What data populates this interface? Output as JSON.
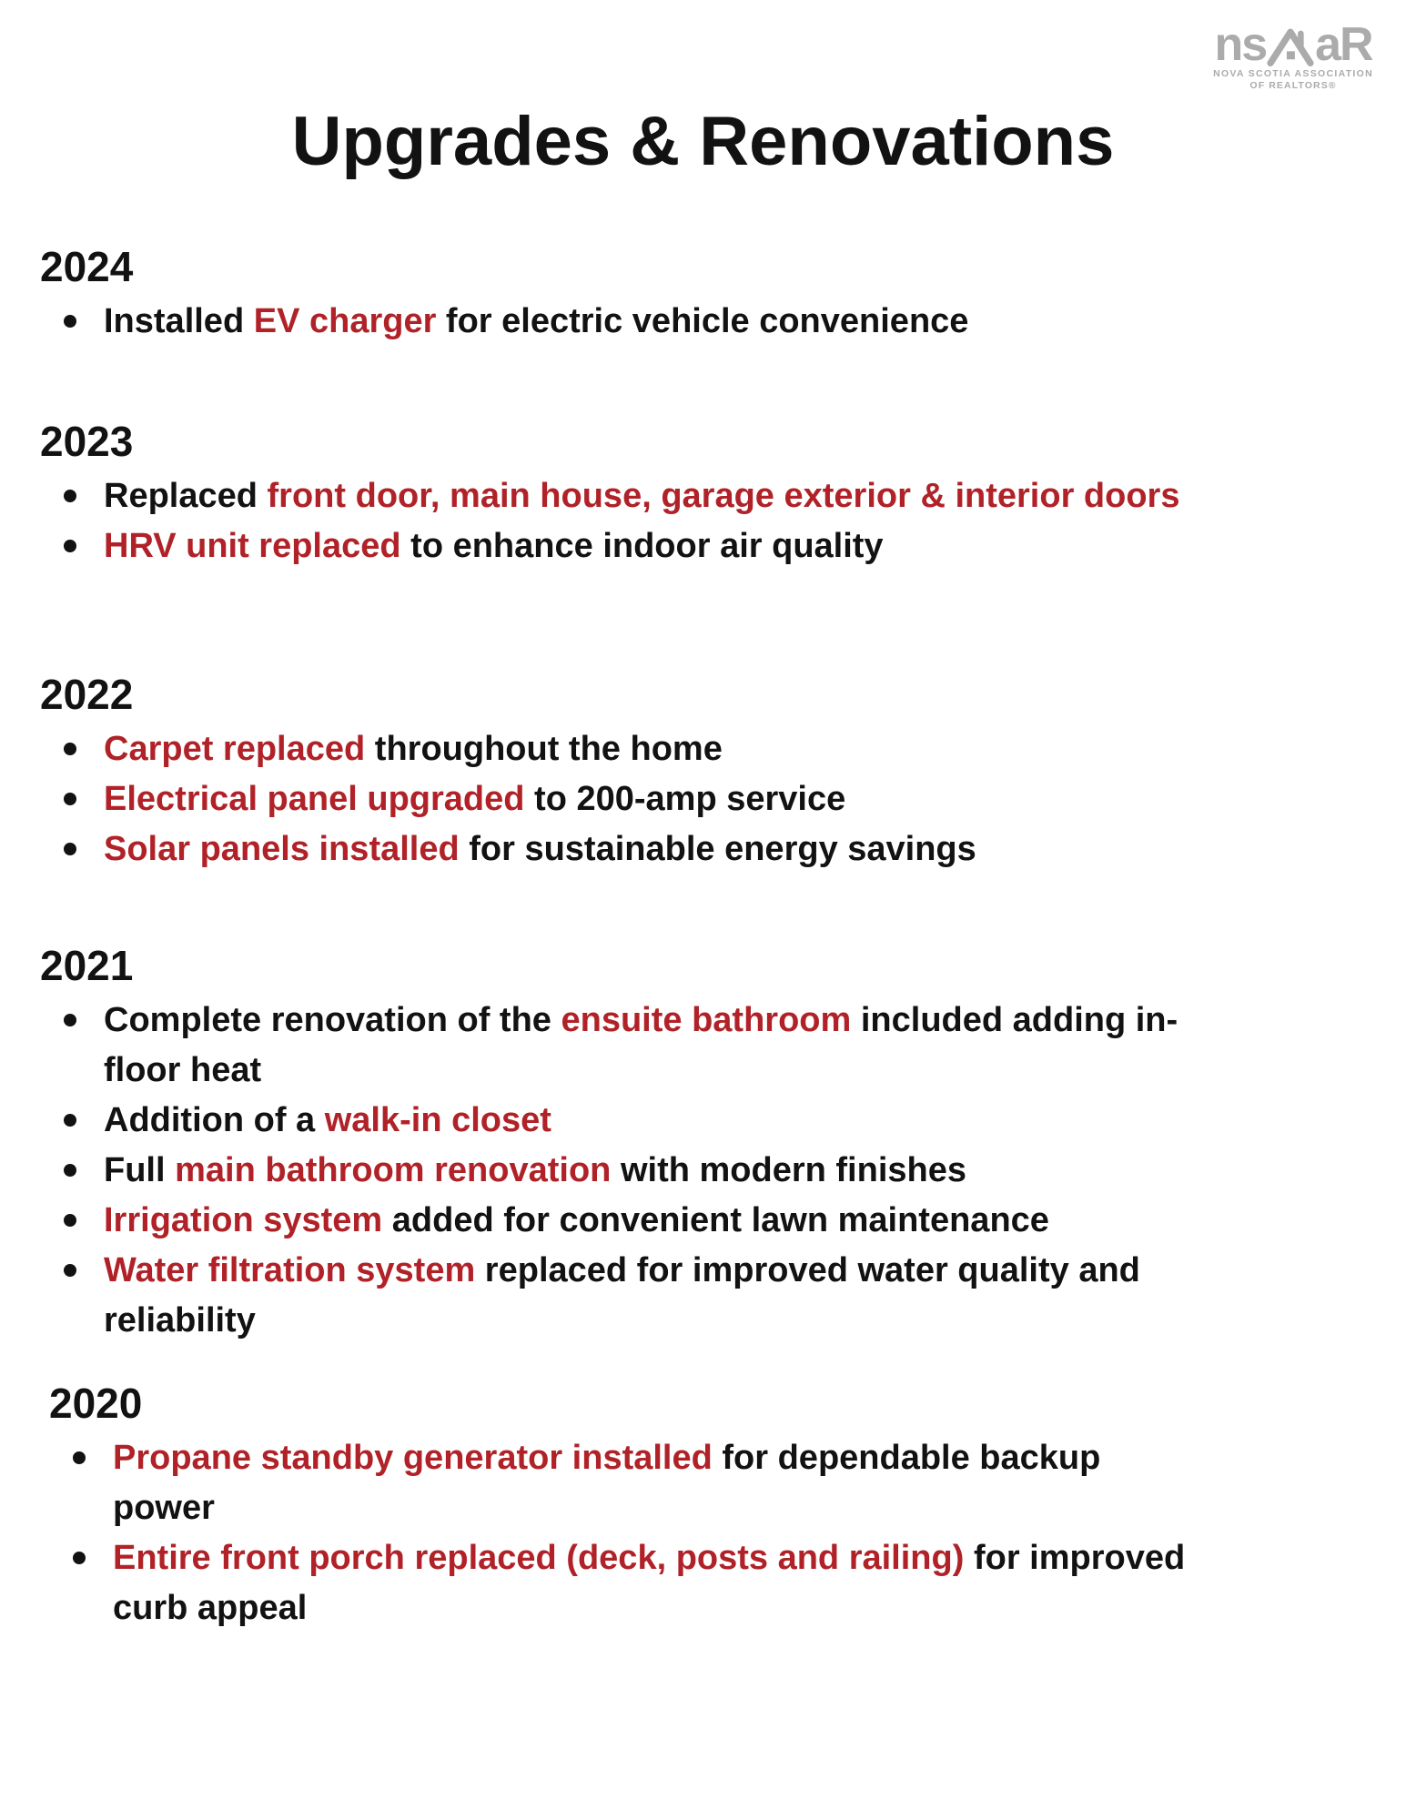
{
  "title": "Upgrades & Renovations",
  "colors": {
    "text": "#121212",
    "accent_red": "#b02228",
    "logo_gray": "#ababab"
  },
  "logo": {
    "text_left": "ns",
    "text_right": "aR",
    "tagline_line1": "NOVA SCOTIA ASSOCIATION",
    "tagline_line2": "OF REALTORS®"
  },
  "sections": [
    {
      "year": "2024",
      "items": [
        [
          {
            "t": "Installed "
          },
          {
            "t": "EV charger",
            "red": true
          },
          {
            "t": " for electric vehicle convenience"
          }
        ]
      ]
    },
    {
      "year": "2023",
      "items": [
        [
          {
            "t": "Replaced "
          },
          {
            "t": "front door, main house, garage exterior & interior doors",
            "red": true
          }
        ],
        [
          {
            "t": "HRV unit replaced",
            "red": true
          },
          {
            "t": " to enhance indoor air quality"
          }
        ]
      ]
    },
    {
      "year": "2022",
      "items": [
        [
          {
            "t": "Carpet replaced",
            "red": true
          },
          {
            "t": " throughout the home"
          }
        ],
        [
          {
            "t": "Electrical panel upgraded",
            "red": true
          },
          {
            "t": " to 200-amp service"
          }
        ],
        [
          {
            "t": "Solar panels installed",
            "red": true
          },
          {
            "t": " for sustainable energy savings"
          }
        ]
      ]
    },
    {
      "year": "2021",
      "items": [
        [
          {
            "t": "Complete renovation of the "
          },
          {
            "t": "ensuite bathroom",
            "red": true
          },
          {
            "t": " included adding in-\nfloor heat"
          }
        ],
        [
          {
            "t": "Addition of a "
          },
          {
            "t": "walk-in closet",
            "red": true
          }
        ],
        [
          {
            "t": "Full "
          },
          {
            "t": "main bathroom renovation",
            "red": true
          },
          {
            "t": " with modern finishes"
          }
        ],
        [
          {
            "t": "Irrigation system",
            "red": true
          },
          {
            "t": " added for convenient lawn maintenance"
          }
        ],
        [
          {
            "t": "Water filtration system",
            "red": true
          },
          {
            "t": " replaced for improved water quality and\nreliability"
          }
        ]
      ]
    },
    {
      "year": "2020",
      "items": [
        [
          {
            "t": "Propane standby generator installed",
            "red": true
          },
          {
            "t": " for dependable backup\npower"
          }
        ],
        [
          {
            "t": "Entire front porch replaced (deck, posts and railing)",
            "red": true
          },
          {
            "t": " for improved\ncurb appeal"
          }
        ]
      ]
    }
  ]
}
